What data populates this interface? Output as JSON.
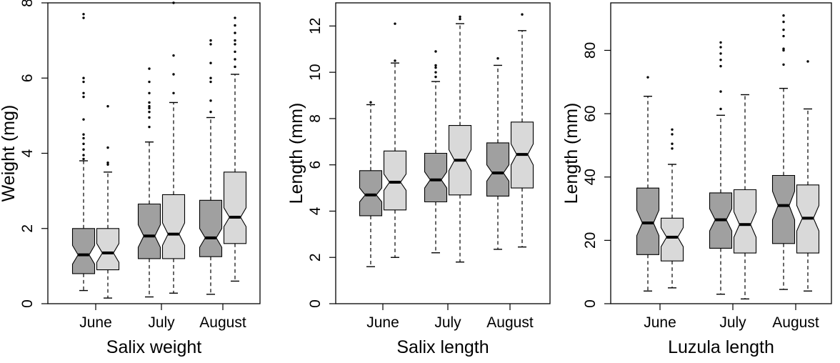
{
  "chart_data": [
    {
      "type": "boxplot",
      "title": "Salix weight",
      "xlabel": "Salix weight",
      "ylabel": "Weight (mg)",
      "ylim": [
        0,
        8
      ],
      "yticks": [
        0,
        2,
        4,
        6,
        8
      ],
      "categories": [
        "June",
        "July",
        "August"
      ],
      "colors": {
        "dark": "#A0A0A0",
        "light": "#D9D9D9"
      },
      "boxes": [
        {
          "cat": 0,
          "shade": "dark",
          "min": 0.35,
          "q1": 0.8,
          "median": 1.3,
          "q3": 2.0,
          "max": 3.8,
          "notch": [
            1.05,
            1.55
          ],
          "outliers": [
            3.85,
            3.95,
            4.1,
            4.25,
            4.4,
            4.5,
            4.9,
            5.5,
            5.6,
            5.9,
            6.0,
            7.6,
            7.7
          ]
        },
        {
          "cat": 0,
          "shade": "light",
          "min": 0.15,
          "q1": 0.9,
          "median": 1.35,
          "q3": 2.0,
          "max": 3.5,
          "notch": [
            1.1,
            1.6
          ],
          "outliers": [
            3.7,
            3.75,
            4.15,
            5.25
          ]
        },
        {
          "cat": 1,
          "shade": "dark",
          "min": 0.18,
          "q1": 1.2,
          "median": 1.8,
          "q3": 2.65,
          "max": 4.3,
          "notch": [
            1.5,
            2.1
          ],
          "outliers": [
            4.7,
            4.95,
            5.1,
            5.2,
            5.25,
            5.35,
            5.6,
            5.9,
            6.25
          ]
        },
        {
          "cat": 1,
          "shade": "light",
          "min": 0.28,
          "q1": 1.2,
          "median": 1.85,
          "q3": 2.9,
          "max": 5.35,
          "notch": [
            1.55,
            2.15
          ],
          "outliers": [
            5.6,
            6.1,
            6.6,
            8.0
          ]
        },
        {
          "cat": 2,
          "shade": "dark",
          "min": 0.25,
          "q1": 1.25,
          "median": 1.75,
          "q3": 2.75,
          "max": 4.95,
          "notch": [
            1.5,
            2.0
          ],
          "outliers": [
            5.1,
            5.4,
            5.9,
            6.0,
            6.4,
            6.9,
            7.0
          ]
        },
        {
          "cat": 2,
          "shade": "light",
          "min": 0.6,
          "q1": 1.6,
          "median": 2.3,
          "q3": 3.5,
          "max": 6.1,
          "notch": [
            2.05,
            2.55
          ],
          "outliers": [
            6.3,
            6.5,
            6.7,
            6.9,
            7.0,
            7.2,
            7.4,
            7.6
          ]
        }
      ]
    },
    {
      "type": "boxplot",
      "title": "Salix length",
      "xlabel": "Salix length",
      "ylabel": "Length (mm)",
      "ylim": [
        0,
        13
      ],
      "yticks": [
        0,
        2,
        4,
        6,
        8,
        10,
        12
      ],
      "categories": [
        "June",
        "July",
        "August"
      ],
      "colors": {
        "dark": "#A0A0A0",
        "light": "#D9D9D9"
      },
      "boxes": [
        {
          "cat": 0,
          "shade": "dark",
          "min": 1.6,
          "q1": 3.8,
          "median": 4.7,
          "q3": 5.75,
          "max": 8.6,
          "notch": [
            4.4,
            5.0
          ],
          "outliers": [
            8.7
          ]
        },
        {
          "cat": 0,
          "shade": "light",
          "min": 2.0,
          "q1": 4.05,
          "median": 5.25,
          "q3": 6.6,
          "max": 10.4,
          "notch": [
            4.9,
            5.6
          ],
          "outliers": [
            10.5,
            12.1
          ]
        },
        {
          "cat": 1,
          "shade": "dark",
          "min": 2.2,
          "q1": 4.4,
          "median": 5.35,
          "q3": 6.5,
          "max": 9.6,
          "notch": [
            5.0,
            5.7
          ],
          "outliers": [
            9.8,
            10.0,
            10.2,
            10.3,
            10.9
          ]
        },
        {
          "cat": 1,
          "shade": "light",
          "min": 1.8,
          "q1": 4.7,
          "median": 6.2,
          "q3": 7.7,
          "max": 12.1,
          "notch": [
            5.75,
            6.65
          ],
          "outliers": [
            12.3,
            12.4
          ]
        },
        {
          "cat": 2,
          "shade": "dark",
          "min": 2.35,
          "q1": 4.65,
          "median": 5.65,
          "q3": 6.95,
          "max": 10.3,
          "notch": [
            5.3,
            6.0
          ],
          "outliers": [
            10.6
          ]
        },
        {
          "cat": 2,
          "shade": "light",
          "min": 2.45,
          "q1": 5.0,
          "median": 6.45,
          "q3": 7.85,
          "max": 11.8,
          "notch": [
            6.0,
            6.9
          ],
          "outliers": [
            12.5
          ]
        }
      ]
    },
    {
      "type": "boxplot",
      "title": "Luzula length",
      "xlabel": "Luzula length",
      "ylabel": "Length (mm)",
      "ylim": [
        0,
        95
      ],
      "yticks": [
        0,
        20,
        40,
        60,
        80
      ],
      "categories": [
        "June",
        "July",
        "August"
      ],
      "colors": {
        "dark": "#A0A0A0",
        "light": "#D9D9D9"
      },
      "boxes": [
        {
          "cat": 0,
          "shade": "dark",
          "min": 4.0,
          "q1": 15.5,
          "median": 25.5,
          "q3": 36.5,
          "max": 65.5,
          "notch": [
            21.5,
            29.5
          ],
          "outliers": [
            71.5
          ]
        },
        {
          "cat": 0,
          "shade": "light",
          "min": 5.0,
          "q1": 13.5,
          "median": 21.0,
          "q3": 27.0,
          "max": 44.0,
          "notch": [
            18.0,
            24.0
          ],
          "outliers": [
            49.0,
            50.5,
            53.5,
            55.0
          ]
        },
        {
          "cat": 1,
          "shade": "dark",
          "min": 3.0,
          "q1": 17.5,
          "median": 26.5,
          "q3": 35.0,
          "max": 59.5,
          "notch": [
            23.0,
            30.0
          ],
          "outliers": [
            61.5,
            67.0,
            75.0,
            77.0,
            79.0,
            81.0,
            82.5
          ]
        },
        {
          "cat": 1,
          "shade": "light",
          "min": 1.5,
          "q1": 16.0,
          "median": 25.0,
          "q3": 36.0,
          "max": 66.0,
          "notch": [
            21.0,
            29.0
          ],
          "outliers": []
        },
        {
          "cat": 2,
          "shade": "dark",
          "min": 4.5,
          "q1": 19.0,
          "median": 31.0,
          "q3": 40.5,
          "max": 68.0,
          "notch": [
            26.5,
            35.5
          ],
          "outliers": [
            75.5,
            80.0,
            80.5,
            84.5,
            86.5,
            89.0,
            91.0
          ]
        },
        {
          "cat": 2,
          "shade": "light",
          "min": 4.0,
          "q1": 16.0,
          "median": 27.0,
          "q3": 37.5,
          "max": 61.5,
          "notch": [
            23.0,
            31.0
          ],
          "outliers": [
            76.5
          ]
        }
      ]
    }
  ]
}
